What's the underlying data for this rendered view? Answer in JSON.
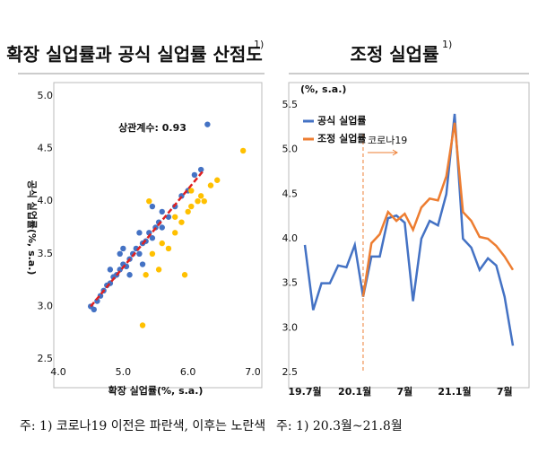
{
  "chart_data": [
    {
      "type": "scatter",
      "title": "확장 실업률과 공식 실업률 산점도",
      "title_note": "1)",
      "xlabel": "확장 실업률(%, s.a.)",
      "ylabel": "공식 실업률(%, s.a.)",
      "annotation": "상관계수: 0.93",
      "footnote": "주: 1) 코로나19 이전은 파란색, 이후는 노란색",
      "xlim": [
        4,
        7
      ],
      "ylim": [
        2.5,
        5
      ],
      "xticks": [
        {
          "value": 4,
          "label": "4.0"
        },
        {
          "value": 5,
          "label": "5.0"
        },
        {
          "value": 6,
          "label": "6.0"
        },
        {
          "value": 7,
          "label": "7.0"
        }
      ],
      "yticks": [
        2.5,
        {
          "value": 3,
          "label": "3.0"
        },
        3.5,
        {
          "value": 4,
          "label": "4.0"
        },
        4.5,
        {
          "value": 5,
          "label": "5.0"
        }
      ],
      "series": [
        {
          "color": "#4472c4",
          "x": [
            4.5,
            4.55,
            4.6,
            4.65,
            4.7,
            4.75,
            4.8,
            4.85,
            4.9,
            4.95,
            5.0,
            5.05,
            5.1,
            5.15,
            5.2,
            5.25,
            5.3,
            5.35,
            5.4,
            5.45,
            5.5,
            5.55,
            5.6,
            5.3,
            5.1,
            4.95,
            5.6,
            5.7,
            5.8,
            5.9,
            6.0,
            6.1,
            6.2,
            6.3,
            5.45,
            5.0,
            4.8,
            5.25
          ],
          "values": [
            3.0,
            2.97,
            3.05,
            3.1,
            3.15,
            3.2,
            3.22,
            3.28,
            3.3,
            3.35,
            3.4,
            3.38,
            3.45,
            3.5,
            3.55,
            3.5,
            3.6,
            3.62,
            3.7,
            3.65,
            3.75,
            3.8,
            3.9,
            3.4,
            3.3,
            3.5,
            3.75,
            3.85,
            3.95,
            4.05,
            4.1,
            4.25,
            4.3,
            4.73,
            3.95,
            3.55,
            3.35,
            3.7
          ]
        },
        {
          "color": "#ffc000",
          "x": [
            5.3,
            5.35,
            5.45,
            5.55,
            5.7,
            5.8,
            5.9,
            5.95,
            6.0,
            6.05,
            6.15,
            6.25,
            6.35,
            6.45,
            6.85,
            5.4,
            5.8,
            6.05,
            6.2,
            5.6
          ],
          "values": [
            2.82,
            3.3,
            3.5,
            3.35,
            3.55,
            3.7,
            3.8,
            3.3,
            3.9,
            3.95,
            4.0,
            4.0,
            4.15,
            4.2,
            4.48,
            4.0,
            3.85,
            4.1,
            4.05,
            3.6
          ]
        }
      ],
      "trendline": {
        "color": "#e02020",
        "x": [
          4.5,
          6.25
        ],
        "values": [
          3.0,
          4.3
        ]
      }
    },
    {
      "type": "line",
      "title": "조정 실업률",
      "title_note": "1)",
      "ylabel": "(%, s.a.)",
      "footnote": "주: 1) 20.3월~21.8월",
      "annotation": "코로나19",
      "ylim": [
        2.5,
        5.5
      ],
      "yticks": [
        2.5,
        {
          "value": 3,
          "label": "3.0"
        },
        3.5,
        {
          "value": 4,
          "label": "4.0"
        },
        4.5,
        {
          "value": 5,
          "label": "5.0"
        },
        5.5
      ],
      "categories": [
        "19.7월",
        null,
        null,
        null,
        null,
        null,
        "20.1월",
        null,
        null,
        null,
        null,
        null,
        "7월",
        null,
        null,
        null,
        null,
        null,
        "21.1월",
        null,
        null,
        null,
        null,
        null,
        "7월",
        null
      ],
      "series": [
        {
          "name": "공식 실업률",
          "color": "#4472c4",
          "values": [
            3.93,
            3.2,
            3.5,
            3.5,
            3.7,
            3.68,
            3.93,
            3.35,
            3.8,
            3.8,
            4.23,
            4.26,
            4.18,
            3.3,
            4.0,
            4.2,
            4.15,
            4.5,
            5.4,
            4.0,
            3.9,
            3.65,
            3.78,
            3.7,
            3.35,
            2.8
          ]
        },
        {
          "name": "조정 실업률",
          "color": "#ed7d31",
          "values": [
            null,
            null,
            null,
            null,
            null,
            null,
            null,
            3.35,
            3.95,
            4.05,
            4.3,
            4.2,
            4.28,
            4.1,
            4.35,
            4.45,
            4.43,
            4.7,
            5.3,
            4.3,
            4.2,
            4.02,
            4.0,
            3.92,
            3.8,
            3.65
          ]
        }
      ]
    }
  ]
}
